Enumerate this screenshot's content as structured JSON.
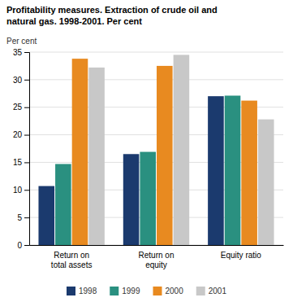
{
  "chart_data": {
    "type": "bar",
    "title": "Profitability measures. Extraction of crude oil and\nnatural gas. 1998-2001. Per cent",
    "ylabel": "Per cent",
    "categories": [
      "Return on\ntotal assets",
      "Return on\nequity",
      "Equity ratio"
    ],
    "series": [
      {
        "name": "1998",
        "color": "#1b3a6e",
        "values": [
          10.7,
          16.5,
          27.0
        ]
      },
      {
        "name": "1999",
        "color": "#2a9080",
        "values": [
          14.7,
          16.9,
          27.1
        ]
      },
      {
        "name": "2000",
        "color": "#e88a20",
        "values": [
          33.8,
          32.5,
          26.2
        ]
      },
      {
        "name": "2001",
        "color": "#c8c8c8",
        "values": [
          32.2,
          34.5,
          22.8
        ]
      }
    ],
    "ylim": [
      0,
      35
    ],
    "yticks": [
      0,
      5,
      10,
      15,
      20,
      25,
      30,
      35
    ],
    "grid": true,
    "legend": "bottom"
  }
}
